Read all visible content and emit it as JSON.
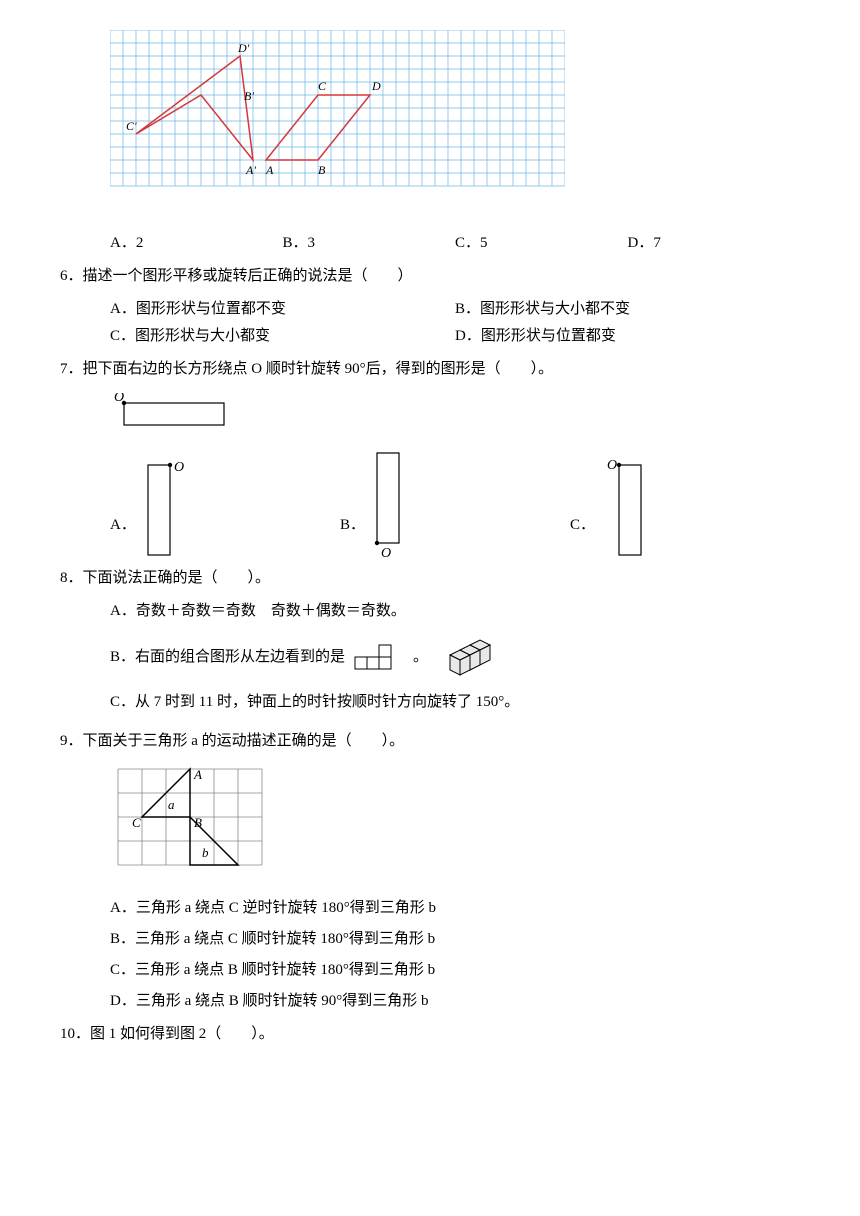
{
  "q5_figure": {
    "grid_cols": 35,
    "grid_rows": 12,
    "cell_size": 13,
    "grid_color": "#6bb6e8",
    "shape_color": "#d63838",
    "label_font": 12,
    "labels": [
      "D'",
      "B'",
      "C'",
      "A'",
      "A",
      "B",
      "C",
      "D"
    ],
    "options": {
      "A": "2",
      "B": "3",
      "C": "5",
      "D": "7"
    }
  },
  "q6": {
    "text": "6．描述一个图形平移或旋转后正确的说法是（　　）",
    "A": "A．图形形状与位置都不变",
    "B": "B．图形形状与大小都不变",
    "C": "C．图形形状与大小都变",
    "D": "D．图形形状与位置都变"
  },
  "q7": {
    "text": "7．把下面右边的长方形绕点 O 顺时针旋转 90°后，得到的图形是（　　）。",
    "label_O": "O",
    "rect_w": 100,
    "rect_h": 22,
    "vert_w": 22,
    "vert_h": 90,
    "optA": "A．",
    "optB": "B．",
    "optC": "C．"
  },
  "q8": {
    "text": "8．下面说法正确的是（　　）。",
    "A": "A．奇数＋奇数＝奇数　奇数＋偶数＝奇数。",
    "B_pre": "B．右面的组合图形从左边看到的是",
    "B_post": "。",
    "C": "C．从 7 时到 11 时，钟面上的时针按顺时针方向旋转了 150°。"
  },
  "q9": {
    "text": "9．下面关于三角形 a 的运动描述正确的是（　　）。",
    "labels": {
      "A": "A",
      "a": "a",
      "B": "B",
      "C": "C",
      "b": "b"
    },
    "A": "A．三角形 a 绕点 C 逆时针旋转 180°得到三角形 b",
    "B": "B．三角形 a 绕点 C 顺时针旋转 180°得到三角形 b",
    "C": "C．三角形 a 绕点 B 顺时针旋转 180°得到三角形 b",
    "D": "D．三角形 a 绕点 B 顺时针旋转 90°得到三角形 b",
    "grid_cols": 6,
    "grid_rows": 4,
    "cell": 24
  },
  "q10": {
    "text": "10．图 1 如何得到图 2（　　）。"
  }
}
